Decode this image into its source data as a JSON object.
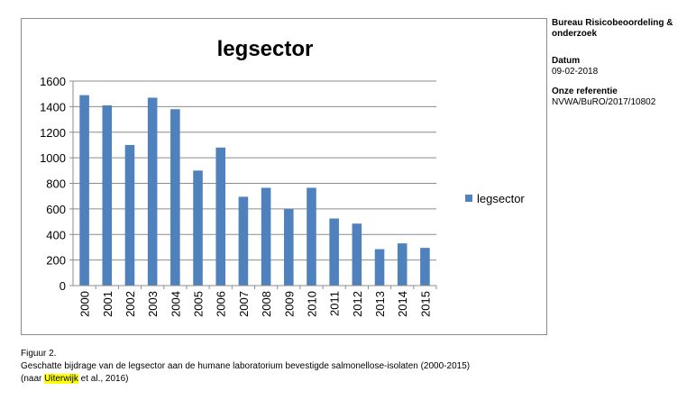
{
  "sidebar": {
    "org": "Bureau Risicobeoordeling & onderzoek",
    "date_label": "Datum",
    "date_value": "09-02-2018",
    "ref_label": "Onze referentie",
    "ref_value": "NVWA/BuRO/2017/10802"
  },
  "caption": {
    "figure": "Figuur 2.",
    "text": "Geschatte bijdrage van de legsector aan de humane laboratorium bevestigde salmonellose-isolaten (2000-2015)",
    "source_prefix": "(naar ",
    "source_highlight": "Uiterwijk",
    "source_suffix": " et al., 2016)"
  },
  "colors": {
    "bar": "#4f81bd",
    "highlight": "#ffff00"
  },
  "chart_data": {
    "type": "bar",
    "title": "legsector",
    "xlabel": "",
    "ylabel": "",
    "categories": [
      "2000",
      "2001",
      "2002",
      "2003",
      "2004",
      "2005",
      "2006",
      "2007",
      "2008",
      "2009",
      "2010",
      "2011",
      "2012",
      "2013",
      "2014",
      "2015"
    ],
    "series": [
      {
        "name": "legsector",
        "values": [
          1490,
          1410,
          1100,
          1470,
          1380,
          900,
          1080,
          695,
          765,
          600,
          765,
          525,
          485,
          285,
          330,
          295
        ]
      }
    ],
    "ylim": [
      0,
      1600
    ],
    "yticks": [
      0,
      200,
      400,
      600,
      800,
      1000,
      1200,
      1400,
      1600
    ],
    "grid": true,
    "legend_position": "right"
  }
}
